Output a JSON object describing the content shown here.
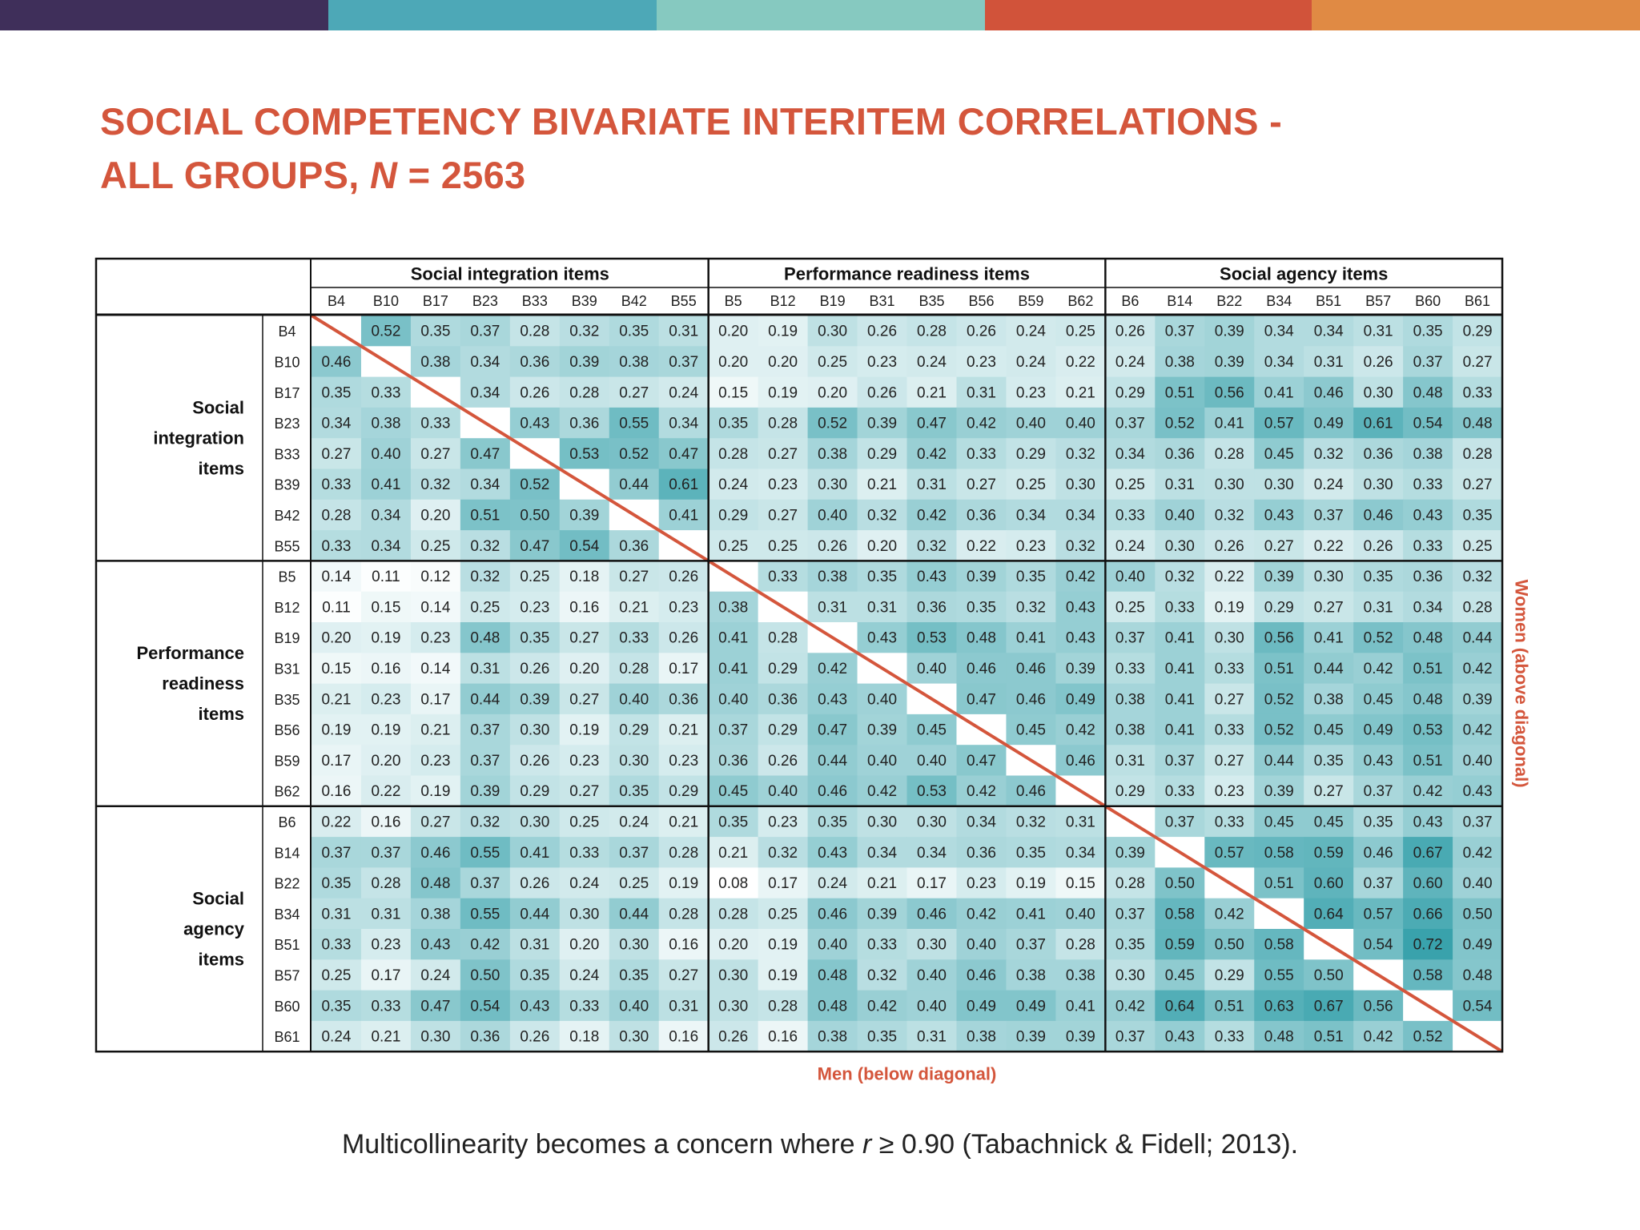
{
  "topbar_colors": [
    "#3f2f5a",
    "#4da8b7",
    "#86c9c0",
    "#d1533a",
    "#e08a44"
  ],
  "title": {
    "line1": "SOCIAL COMPETENCY BIVARIATE INTERITEM CORRELATIONS -",
    "line2_prefix": "ALL GROUPS, ",
    "line2_var": "N",
    "line2_suffix": " = 2563"
  },
  "chart_data": {
    "type": "heatmap",
    "title": "SOCIAL COMPETENCY BIVARIATE INTERITEM CORRELATIONS - ALL GROUPS, N = 2563",
    "groups": [
      {
        "column_label": "Social integration items",
        "row_label": [
          "Social",
          "integration",
          "items"
        ]
      },
      {
        "column_label": "Performance readiness items",
        "row_label": [
          "Performance",
          "readiness",
          "items"
        ]
      },
      {
        "column_label": "Social agency items",
        "row_label": [
          "Social",
          "agency",
          "items"
        ]
      }
    ],
    "items": [
      "B4",
      "B10",
      "B17",
      "B23",
      "B33",
      "B39",
      "B42",
      "B55",
      "B5",
      "B12",
      "B19",
      "B31",
      "B35",
      "B56",
      "B59",
      "B62",
      "B6",
      "B14",
      "B22",
      "B34",
      "B51",
      "B57",
      "B60",
      "B61"
    ],
    "values": [
      [
        null,
        0.52,
        0.35,
        0.37,
        0.28,
        0.32,
        0.35,
        0.31,
        0.2,
        0.19,
        0.3,
        0.26,
        0.28,
        0.26,
        0.24,
        0.25,
        0.26,
        0.37,
        0.39,
        0.34,
        0.34,
        0.31,
        0.35,
        0.29
      ],
      [
        0.46,
        null,
        0.38,
        0.34,
        0.36,
        0.39,
        0.38,
        0.37,
        0.2,
        0.2,
        0.25,
        0.23,
        0.24,
        0.23,
        0.24,
        0.22,
        0.24,
        0.38,
        0.39,
        0.34,
        0.31,
        0.26,
        0.37,
        0.27
      ],
      [
        0.35,
        0.33,
        null,
        0.34,
        0.26,
        0.28,
        0.27,
        0.24,
        0.15,
        0.19,
        0.2,
        0.26,
        0.21,
        0.31,
        0.23,
        0.21,
        0.29,
        0.51,
        0.56,
        0.41,
        0.46,
        0.3,
        0.48,
        0.33
      ],
      [
        0.34,
        0.38,
        0.33,
        null,
        0.43,
        0.36,
        0.55,
        0.34,
        0.35,
        0.28,
        0.52,
        0.39,
        0.47,
        0.42,
        0.4,
        0.4,
        0.37,
        0.52,
        0.41,
        0.57,
        0.49,
        0.61,
        0.54,
        0.48
      ],
      [
        0.27,
        0.4,
        0.27,
        0.47,
        null,
        0.53,
        0.52,
        0.47,
        0.28,
        0.27,
        0.38,
        0.29,
        0.42,
        0.33,
        0.29,
        0.32,
        0.34,
        0.36,
        0.28,
        0.45,
        0.32,
        0.36,
        0.38,
        0.28
      ],
      [
        0.33,
        0.41,
        0.32,
        0.34,
        0.52,
        null,
        0.44,
        0.61,
        0.24,
        0.23,
        0.3,
        0.21,
        0.31,
        0.27,
        0.25,
        0.3,
        0.25,
        0.31,
        0.3,
        0.3,
        0.24,
        0.3,
        0.33,
        0.27
      ],
      [
        0.28,
        0.34,
        0.2,
        0.51,
        0.5,
        0.39,
        null,
        0.41,
        0.29,
        0.27,
        0.4,
        0.32,
        0.42,
        0.36,
        0.34,
        0.34,
        0.33,
        0.4,
        0.32,
        0.43,
        0.37,
        0.46,
        0.43,
        0.35
      ],
      [
        0.33,
        0.34,
        0.25,
        0.32,
        0.47,
        0.54,
        0.36,
        null,
        0.25,
        0.25,
        0.26,
        0.2,
        0.32,
        0.22,
        0.23,
        0.32,
        0.24,
        0.3,
        0.26,
        0.27,
        0.22,
        0.26,
        0.33,
        0.25
      ],
      [
        0.14,
        0.11,
        0.12,
        0.32,
        0.25,
        0.18,
        0.27,
        0.26,
        null,
        0.33,
        0.38,
        0.35,
        0.43,
        0.39,
        0.35,
        0.42,
        0.4,
        0.32,
        0.22,
        0.39,
        0.3,
        0.35,
        0.36,
        0.32
      ],
      [
        0.11,
        0.15,
        0.14,
        0.25,
        0.23,
        0.16,
        0.21,
        0.23,
        0.38,
        null,
        0.31,
        0.31,
        0.36,
        0.35,
        0.32,
        0.43,
        0.25,
        0.33,
        0.19,
        0.29,
        0.27,
        0.31,
        0.34,
        0.28
      ],
      [
        0.2,
        0.19,
        0.23,
        0.48,
        0.35,
        0.27,
        0.33,
        0.26,
        0.41,
        0.28,
        null,
        0.43,
        0.53,
        0.48,
        0.41,
        0.43,
        0.37,
        0.41,
        0.3,
        0.56,
        0.41,
        0.52,
        0.48,
        0.44
      ],
      [
        0.15,
        0.16,
        0.14,
        0.31,
        0.26,
        0.2,
        0.28,
        0.17,
        0.41,
        0.29,
        0.42,
        null,
        0.4,
        0.46,
        0.46,
        0.39,
        0.33,
        0.41,
        0.33,
        0.51,
        0.44,
        0.42,
        0.51,
        0.42
      ],
      [
        0.21,
        0.23,
        0.17,
        0.44,
        0.39,
        0.27,
        0.4,
        0.36,
        0.4,
        0.36,
        0.43,
        0.4,
        null,
        0.47,
        0.46,
        0.49,
        0.38,
        0.41,
        0.27,
        0.52,
        0.38,
        0.45,
        0.48,
        0.39
      ],
      [
        0.19,
        0.19,
        0.21,
        0.37,
        0.3,
        0.19,
        0.29,
        0.21,
        0.37,
        0.29,
        0.47,
        0.39,
        0.45,
        null,
        0.45,
        0.42,
        0.38,
        0.41,
        0.33,
        0.52,
        0.45,
        0.49,
        0.53,
        0.42
      ],
      [
        0.17,
        0.2,
        0.23,
        0.37,
        0.26,
        0.23,
        0.3,
        0.23,
        0.36,
        0.26,
        0.44,
        0.4,
        0.4,
        0.47,
        null,
        0.46,
        0.31,
        0.37,
        0.27,
        0.44,
        0.35,
        0.43,
        0.51,
        0.4
      ],
      [
        0.16,
        0.22,
        0.19,
        0.39,
        0.29,
        0.27,
        0.35,
        0.29,
        0.45,
        0.4,
        0.46,
        0.42,
        0.53,
        0.42,
        0.46,
        null,
        0.29,
        0.33,
        0.23,
        0.39,
        0.27,
        0.37,
        0.42,
        0.43
      ],
      [
        0.22,
        0.16,
        0.27,
        0.32,
        0.3,
        0.25,
        0.24,
        0.21,
        0.35,
        0.23,
        0.35,
        0.3,
        0.3,
        0.34,
        0.32,
        0.31,
        null,
        0.37,
        0.33,
        0.45,
        0.45,
        0.35,
        0.43,
        0.37
      ],
      [
        0.37,
        0.37,
        0.46,
        0.55,
        0.41,
        0.33,
        0.37,
        0.28,
        0.21,
        0.32,
        0.43,
        0.34,
        0.34,
        0.36,
        0.35,
        0.34,
        0.39,
        null,
        0.57,
        0.58,
        0.59,
        0.46,
        0.67,
        0.42
      ],
      [
        0.35,
        0.28,
        0.48,
        0.37,
        0.26,
        0.24,
        0.25,
        0.19,
        0.08,
        0.17,
        0.24,
        0.21,
        0.17,
        0.23,
        0.19,
        0.15,
        0.28,
        0.5,
        null,
        0.51,
        0.6,
        0.37,
        0.6,
        0.4
      ],
      [
        0.31,
        0.31,
        0.38,
        0.55,
        0.44,
        0.3,
        0.44,
        0.28,
        0.28,
        0.25,
        0.46,
        0.39,
        0.46,
        0.42,
        0.41,
        0.4,
        0.37,
        0.58,
        0.42,
        null,
        0.64,
        0.57,
        0.66,
        0.5
      ],
      [
        0.33,
        0.23,
        0.43,
        0.42,
        0.31,
        0.2,
        0.3,
        0.16,
        0.2,
        0.19,
        0.4,
        0.33,
        0.3,
        0.4,
        0.37,
        0.28,
        0.35,
        0.59,
        0.5,
        0.58,
        null,
        0.54,
        0.72,
        0.49
      ],
      [
        0.25,
        0.17,
        0.24,
        0.5,
        0.35,
        0.24,
        0.35,
        0.27,
        0.3,
        0.19,
        0.48,
        0.32,
        0.4,
        0.46,
        0.38,
        0.38,
        0.3,
        0.45,
        0.29,
        0.55,
        0.5,
        null,
        0.58,
        0.48
      ],
      [
        0.35,
        0.33,
        0.47,
        0.54,
        0.43,
        0.33,
        0.4,
        0.31,
        0.3,
        0.28,
        0.48,
        0.42,
        0.4,
        0.49,
        0.49,
        0.41,
        0.42,
        0.64,
        0.51,
        0.63,
        0.67,
        0.56,
        null,
        0.54
      ],
      [
        0.24,
        0.21,
        0.3,
        0.36,
        0.26,
        0.18,
        0.3,
        0.16,
        0.26,
        0.16,
        0.38,
        0.35,
        0.31,
        0.38,
        0.39,
        0.39,
        0.37,
        0.43,
        0.33,
        0.48,
        0.51,
        0.42,
        0.52,
        null
      ]
    ],
    "lower_label": "Men (below diagonal)",
    "upper_label": "Women (above diagonal)",
    "color_low": "#ffffff",
    "color_high": "#2f9ea8",
    "diagonal_color": "#d4563c"
  },
  "footnote": {
    "prefix": "Multicollinearity becomes a concern where ",
    "var": "r",
    "suffix": " ≥ 0.90 (Tabachnick & Fidell; 2013)."
  }
}
